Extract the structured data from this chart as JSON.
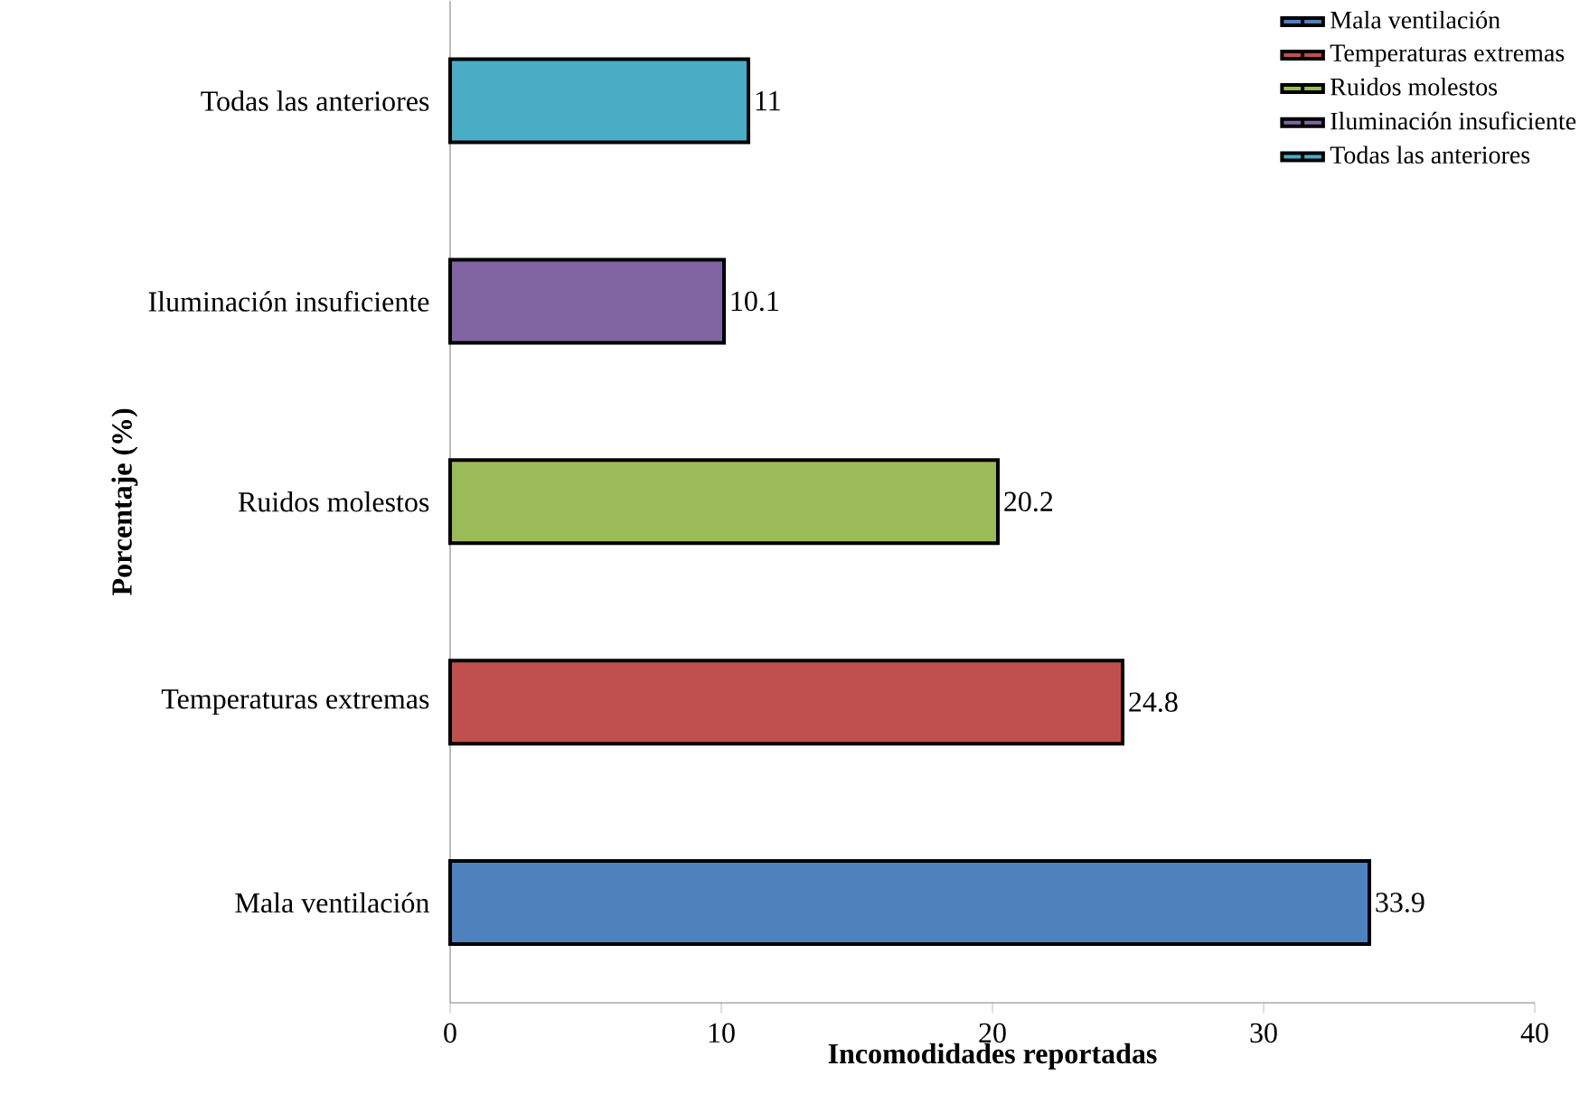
{
  "chart_data": {
    "type": "bar",
    "orientation": "horizontal",
    "categories": [
      "Todas las anteriores",
      "Iluminación insuficiente",
      "Ruidos molestos",
      "Temperaturas extremas",
      "Mala ventilación"
    ],
    "series": [
      {
        "name": "Mala ventilación",
        "color": "#4f81bd",
        "values": [
          null,
          null,
          null,
          null,
          33.9
        ]
      },
      {
        "name": "Temperaturas extremas",
        "color": "#c0504d",
        "values": [
          null,
          null,
          null,
          24.8,
          null
        ]
      },
      {
        "name": "Ruidos molestos",
        "color": "#9bbb59",
        "values": [
          null,
          null,
          20.2,
          null,
          null
        ]
      },
      {
        "name": "Iluminación insuficiente",
        "color": "#8064a2",
        "values": [
          null,
          10.1,
          null,
          null,
          null
        ]
      },
      {
        "name": "Todas las anteriores",
        "color": "#4bacc6",
        "values": [
          11,
          null,
          null,
          null,
          null
        ]
      }
    ],
    "xlim": [
      0,
      40
    ],
    "xticks": [
      0,
      10,
      20,
      30,
      40
    ],
    "xlabel": "Incomodidades reportadas",
    "ylabel": "Porcentaje (%)",
    "legend": "top right",
    "data_labels": true
  }
}
